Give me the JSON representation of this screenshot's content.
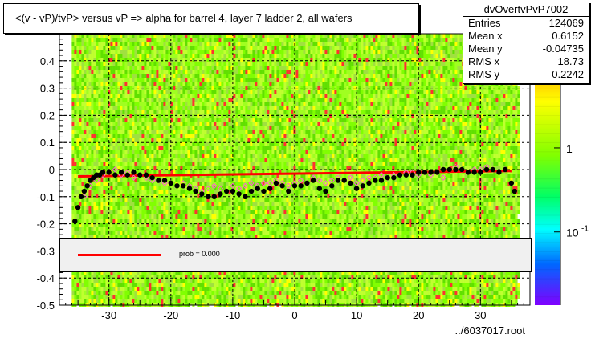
{
  "title": "<(v - vP)/tvP> versus   vP => alpha for barrel 4, layer 7 ladder 2, all wafers",
  "stats": {
    "name": "dvOvertvPvP7002",
    "rows": [
      {
        "label": "Entries",
        "value": "124069"
      },
      {
        "label": "Mean x",
        "value": "0.6152"
      },
      {
        "label": "Mean y",
        "value": "-0.04735"
      },
      {
        "label": "RMS x",
        "value": "18.73"
      },
      {
        "label": "RMS y",
        "value": "0.2242"
      }
    ]
  },
  "legend": {
    "label": "prob = 0.000"
  },
  "footer": "../6037017.root",
  "colors": {
    "fit_line": "#ff0000",
    "points_black": "#000000",
    "points_pink": "#ff66cc",
    "legend_bg": "#f0f0f0"
  },
  "chart_data": {
    "type": "scatter",
    "title": "<(v - vP)/tvP> versus   vP => alpha for barrel 4, layer 7 ladder 2, all wafers",
    "xlim": [
      -38,
      38
    ],
    "ylim": [
      -0.5,
      0.5
    ],
    "x_ticks": [
      -30,
      -20,
      -10,
      0,
      10,
      20,
      30
    ],
    "y_ticks": [
      -0.5,
      -0.4,
      -0.3,
      -0.2,
      -0.1,
      0,
      0.1,
      0.2,
      0.3,
      0.4
    ],
    "y_tick_labels": [
      "-0.5",
      "-0.4",
      "-0.3",
      "-0.2",
      "-0.1",
      "0",
      "0.1",
      "0.2",
      "0.3",
      "0.4"
    ],
    "x_tick_labels": [
      "-30",
      "-20",
      "-10",
      "0",
      "10",
      "20",
      "30"
    ],
    "grid": true,
    "colorbar": {
      "ticks": [
        {
          "label": "1",
          "frac": 0.42
        },
        {
          "label": "10",
          "frac": 0.73,
          "superscript": "-1"
        }
      ]
    },
    "fit_line": {
      "x": [
        -35,
        35
      ],
      "y": [
        -0.025,
        -0.005
      ]
    },
    "series": [
      {
        "marker": "filled-circle",
        "color": "#000000",
        "x": [
          -35.5,
          -35,
          -34.5,
          -34,
          -33.5,
          -33,
          -32.5,
          -32,
          -31.5,
          -31,
          -30,
          -29,
          -28,
          -27,
          -26,
          -25,
          -24,
          -23,
          -22,
          -21,
          -20,
          -19,
          -18,
          -17,
          -16,
          -15,
          -14,
          -13,
          -12,
          -11,
          -10,
          -9,
          -8,
          -7,
          -6,
          -5,
          -4,
          -3,
          -2,
          -1,
          0,
          1,
          2,
          3,
          4,
          5,
          6,
          7,
          8,
          9,
          10,
          11,
          12,
          13,
          14,
          15,
          16,
          17,
          18,
          19,
          20,
          21,
          22,
          23,
          24,
          25,
          26,
          27,
          28,
          29,
          30,
          31,
          32,
          33,
          34,
          35,
          35.5
        ],
        "y": [
          -0.19,
          -0.14,
          -0.1,
          -0.08,
          -0.06,
          -0.04,
          -0.03,
          -0.02,
          -0.02,
          -0.01,
          -0.01,
          -0.02,
          -0.01,
          -0.02,
          -0.01,
          -0.02,
          -0.02,
          -0.03,
          -0.04,
          -0.04,
          -0.05,
          -0.06,
          -0.06,
          -0.07,
          -0.08,
          -0.09,
          -0.1,
          -0.1,
          -0.09,
          -0.08,
          -0.08,
          -0.09,
          -0.1,
          -0.08,
          -0.07,
          -0.08,
          -0.07,
          -0.05,
          -0.06,
          -0.08,
          -0.06,
          -0.06,
          -0.05,
          -0.04,
          -0.07,
          -0.08,
          -0.06,
          -0.04,
          -0.04,
          -0.05,
          -0.07,
          -0.06,
          -0.05,
          -0.04,
          -0.04,
          -0.03,
          -0.03,
          -0.02,
          -0.02,
          -0.02,
          -0.01,
          -0.01,
          -0.01,
          -0.01,
          0.0,
          0.0,
          0.0,
          0.0,
          -0.01,
          -0.01,
          -0.01,
          0.0,
          0.0,
          -0.01,
          0.0,
          -0.05,
          -0.08
        ]
      },
      {
        "marker": "open-diamond",
        "color": "#ff66cc",
        "x": [
          -34,
          -33,
          -32,
          -31,
          -30,
          -29,
          -28,
          -27,
          -26,
          -25,
          -24,
          -23,
          -22,
          -21,
          -20,
          -19,
          -18,
          -17,
          -16,
          -15,
          -14,
          -13,
          -12,
          -11,
          -10,
          -9,
          -8,
          -7,
          -6,
          -5,
          -4,
          -3,
          -2,
          -1,
          0,
          1,
          2,
          3,
          4,
          5,
          6,
          7,
          8,
          9,
          10,
          11,
          12,
          13,
          14,
          15,
          16,
          17,
          18,
          19,
          20,
          21,
          22,
          23,
          24,
          25,
          26,
          27,
          28,
          29,
          30,
          31,
          32,
          33,
          34
        ],
        "y": [
          -0.1,
          -0.06,
          -0.04,
          -0.02,
          -0.01,
          0.0,
          -0.02,
          -0.01,
          -0.03,
          -0.02,
          -0.03,
          -0.04,
          -0.04,
          -0.05,
          -0.05,
          -0.06,
          -0.05,
          -0.06,
          -0.07,
          -0.08,
          -0.07,
          -0.06,
          -0.07,
          -0.08,
          -0.06,
          -0.07,
          -0.06,
          -0.05,
          -0.06,
          -0.05,
          -0.05,
          -0.04,
          -0.05,
          -0.06,
          -0.05,
          -0.04,
          -0.05,
          -0.03,
          -0.04,
          -0.05,
          -0.04,
          -0.03,
          -0.04,
          -0.03,
          -0.05,
          -0.04,
          -0.03,
          -0.03,
          -0.02,
          -0.03,
          -0.02,
          -0.02,
          -0.01,
          -0.01,
          -0.02,
          -0.01,
          -0.02,
          -0.01,
          -0.03,
          0.0,
          0.01,
          0.0,
          -0.01,
          0.0,
          0.0,
          0.01,
          0.0,
          -0.01,
          0.0
        ]
      }
    ]
  }
}
